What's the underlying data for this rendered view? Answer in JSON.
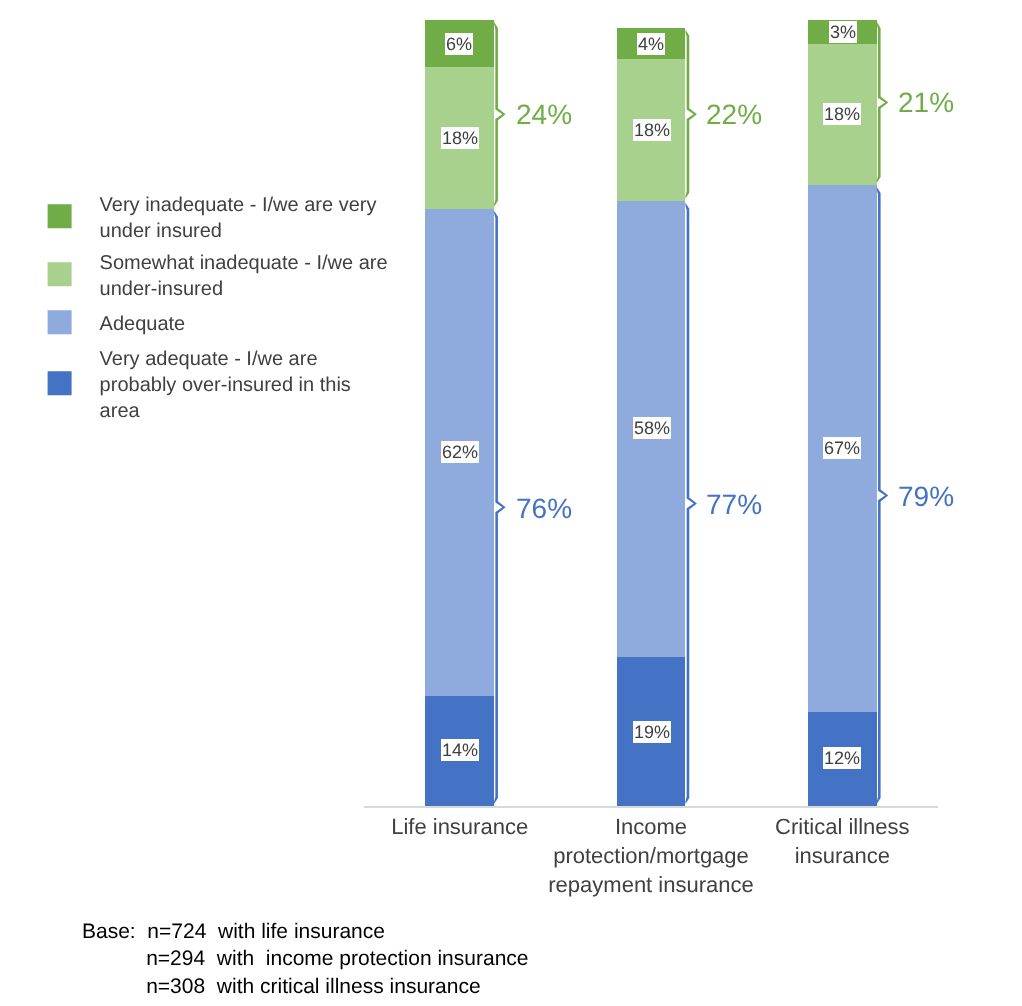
{
  "chart_data": {
    "type": "bar",
    "stacked": true,
    "legend": "left",
    "categories": [
      "Life insurance",
      "Income protection/mortgage repayment insurance",
      "Critical illness insurance"
    ],
    "series": [
      {
        "name": "Very adequate - I/we are probably over-insured in this area",
        "color": "#4472c4",
        "values": [
          14,
          19,
          12
        ],
        "value_labels": [
          "14%",
          "19%",
          "12%"
        ]
      },
      {
        "name": "Adequate",
        "color": "#8faadc",
        "values": [
          62,
          58,
          67
        ],
        "value_labels": [
          "62%",
          "58%",
          "67%"
        ]
      },
      {
        "name": "Somewhat inadequate - I/we are under-insured",
        "color": "#a9d18e",
        "values": [
          18,
          18,
          18
        ],
        "value_labels": [
          "18%",
          "18%",
          "18%"
        ]
      },
      {
        "name": "Very inadequate - I/we are very under insured",
        "color": "#70ad47",
        "values": [
          6,
          4,
          3
        ],
        "value_labels": [
          "6%",
          "4%",
          "3%"
        ]
      }
    ],
    "annotations": [
      "76%",
      "24%",
      "77%",
      "22%",
      "79%",
      "21%",
      "Base:  n=724  with life insurance\nn=294  with  income protection insurance\nn=308  with critical illness insurance"
    ]
  }
}
